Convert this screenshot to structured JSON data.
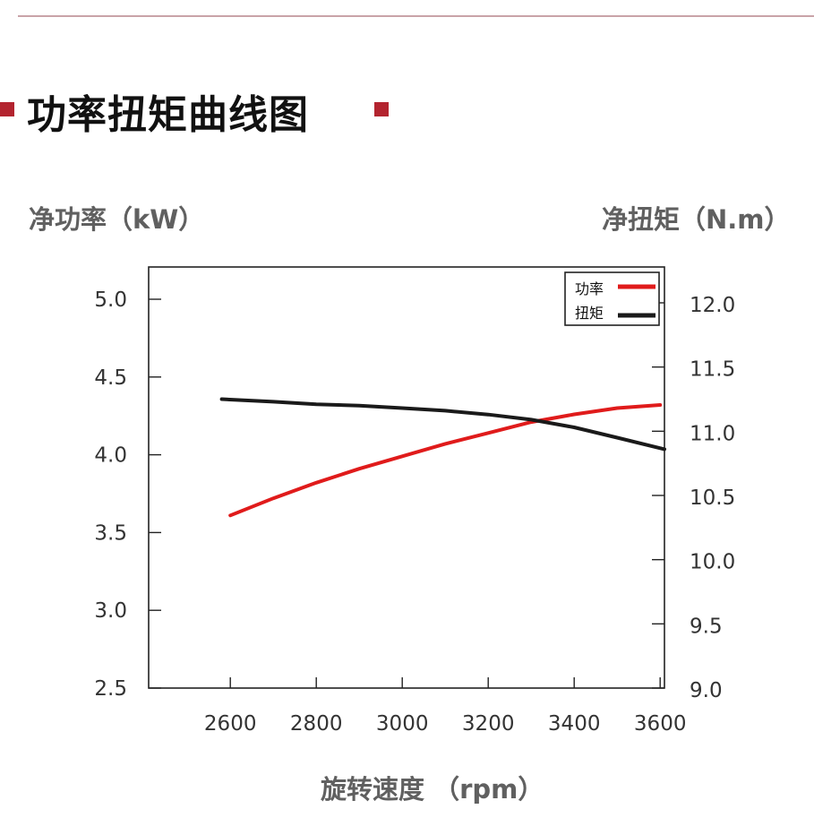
{
  "page": {
    "title": "功率扭矩曲线图",
    "accent_color": "#b3242f",
    "rule_color": "#c9a3a8"
  },
  "chart_data": {
    "type": "line",
    "title": "功率扭矩曲线图",
    "xlabel": "旋转速度 （rpm）",
    "ylabel_left": "净功率（kW）",
    "ylabel_right": "净扭矩（N.m）",
    "x_ticks": [
      "2600",
      "2800",
      "3000",
      "3200",
      "3400",
      "3600"
    ],
    "y_left_ticks": [
      "2.5",
      "3.0",
      "3.5",
      "4.0",
      "4.5",
      "5.0"
    ],
    "y_right_ticks": [
      "9.0",
      "9.5",
      "10.0",
      "10.5",
      "11.0",
      "11.5",
      "12.0"
    ],
    "xlim": [
      2410,
      3610
    ],
    "ylim_left": [
      2.5,
      5.0
    ],
    "ylim_right": [
      9.0,
      12.0
    ],
    "grid": false,
    "legend_position": "top-right",
    "series": [
      {
        "name": "功率",
        "axis": "left",
        "color": "#e01b1b",
        "x": [
          2600,
          2700,
          2800,
          2900,
          3000,
          3100,
          3200,
          3300,
          3400,
          3500,
          3600
        ],
        "values": [
          3.61,
          3.72,
          3.82,
          3.91,
          3.99,
          4.07,
          4.14,
          4.21,
          4.26,
          4.3,
          4.32
        ]
      },
      {
        "name": "扭矩",
        "axis": "right",
        "color": "#1a1a1a",
        "x": [
          2580,
          2700,
          2800,
          2900,
          3000,
          3100,
          3200,
          3300,
          3400,
          3500,
          3610
        ],
        "values": [
          11.25,
          11.23,
          11.21,
          11.2,
          11.18,
          11.16,
          11.13,
          11.09,
          11.03,
          10.95,
          10.86
        ]
      }
    ]
  }
}
